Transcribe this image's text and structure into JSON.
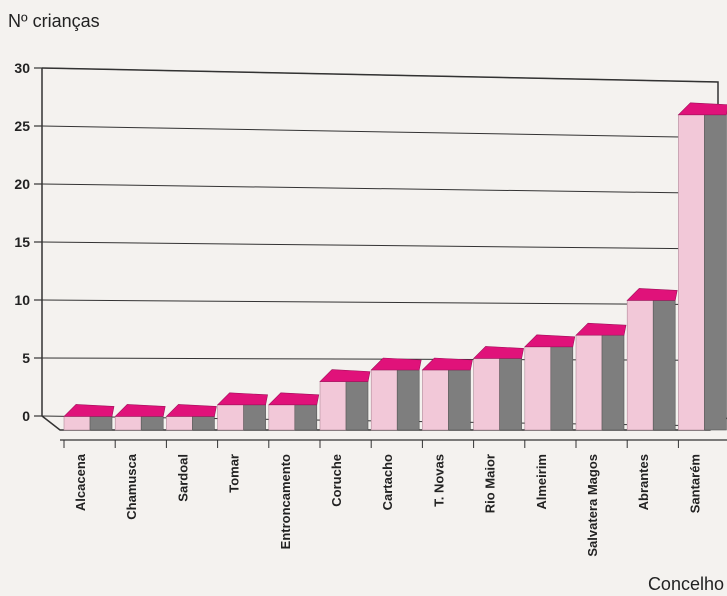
{
  "chart_data": {
    "type": "bar",
    "title": "",
    "ylabel": "Nº crianças",
    "xlabel": "Concelho",
    "ylim": [
      0,
      30
    ],
    "yticks": [
      0,
      5,
      10,
      15,
      20,
      25,
      30
    ],
    "grid": true,
    "categories": [
      "Alcacena",
      "Chamusca",
      "Sardoal",
      "Tomar",
      "Entroncamento",
      "Coruche",
      "Cartacho",
      "T. Novas",
      "Rio Maior",
      "Almeirim",
      "Salvatera Magos",
      "Abrantes",
      "Santarém"
    ],
    "values": [
      1,
      1,
      1,
      2,
      2,
      4,
      5,
      5,
      6,
      7,
      8,
      11,
      27
    ],
    "colors": {
      "top": "#e0127a",
      "front": "#f2c8d8",
      "side": "#7e7e7e"
    }
  }
}
